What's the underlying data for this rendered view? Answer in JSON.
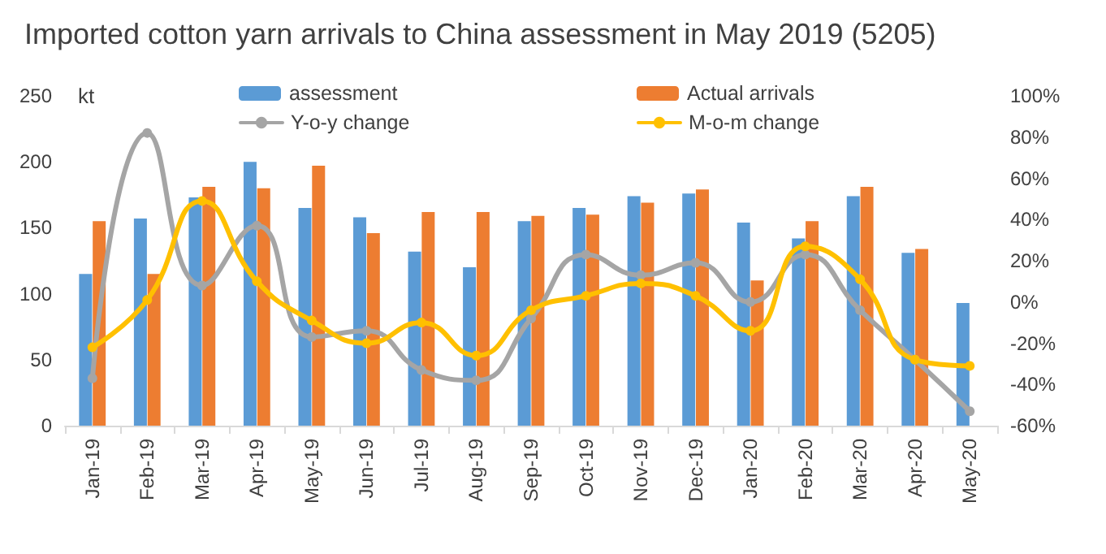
{
  "chart_data": {
    "type": "bar",
    "title": "Imported cotton yarn arrivals to China assessment in May 2019 (5205)",
    "ylabel": "kt",
    "categories": [
      "Jan-19",
      "Feb-19",
      "Mar-19",
      "Apr-19",
      "May-19",
      "Jun-19",
      "Jul-19",
      "Aug-19",
      "Sep-19",
      "Oct-19",
      "Nov-19",
      "Dec-19",
      "Jan-20",
      "Feb-20",
      "Mar-20",
      "Apr-20",
      "May-20"
    ],
    "series": [
      {
        "name": "assessment",
        "color": "#5b9bd5",
        "values": [
          115,
          157,
          173,
          200,
          165,
          158,
          132,
          120,
          155,
          165,
          174,
          176,
          154,
          142,
          174,
          131,
          93
        ]
      },
      {
        "name": "Actual arrivals",
        "color": "#ed7d31",
        "values": [
          155,
          115,
          181,
          180,
          197,
          146,
          162,
          162,
          159,
          160,
          169,
          179,
          110,
          155,
          181,
          134,
          null
        ]
      },
      {
        "name": "Y-o-y change",
        "type": "line",
        "axis": "y2",
        "color": "#a5a5a5",
        "values": [
          -37,
          82,
          8,
          37,
          -17,
          -14,
          -33,
          -38,
          -8,
          23,
          13,
          19,
          0,
          23,
          -4,
          -28,
          -53
        ]
      },
      {
        "name": "M-o-m change",
        "type": "line",
        "axis": "y2",
        "color": "#ffc000",
        "values": [
          -22,
          1,
          49,
          10,
          -9,
          -20,
          -10,
          -26,
          -4,
          3,
          9,
          3,
          -14,
          27,
          11,
          -28,
          -31
        ]
      }
    ],
    "ylim": [
      0,
      250
    ],
    "yticks": [
      0,
      50,
      100,
      150,
      200,
      250
    ],
    "y2lim": [
      -60,
      100
    ],
    "y2ticks": [
      {
        "value": -60,
        "label": "-60%"
      },
      {
        "value": -40,
        "label": "-40%"
      },
      {
        "value": -20,
        "label": "-20%"
      },
      {
        "value": 0,
        "label": "0%"
      },
      {
        "value": 20,
        "label": "20%"
      },
      {
        "value": 40,
        "label": "40%"
      },
      {
        "value": 60,
        "label": "60%"
      },
      {
        "value": 80,
        "label": "80%"
      },
      {
        "value": 100,
        "label": "100%"
      }
    ],
    "legend": "top",
    "grid": false,
    "marker": "circle",
    "line_style": "solid"
  }
}
